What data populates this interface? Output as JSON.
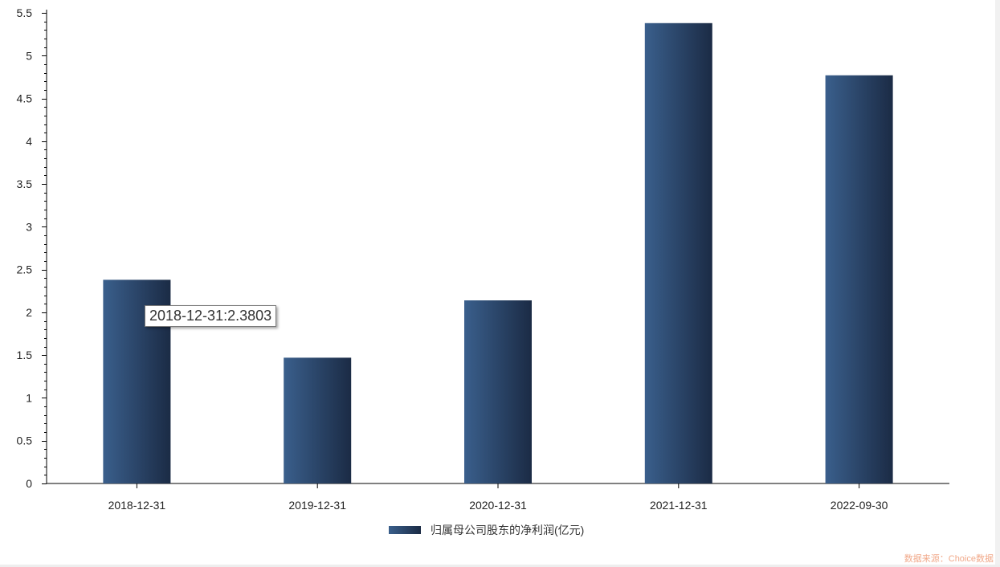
{
  "chart_data": {
    "type": "bar",
    "categories": [
      "2018-12-31",
      "2019-12-31",
      "2020-12-31",
      "2021-12-31",
      "2022-09-30"
    ],
    "series": [
      {
        "name": "归属母公司股东的净利润(亿元)",
        "values": [
          2.3803,
          1.47,
          2.14,
          5.38,
          4.77
        ]
      }
    ],
    "yticks": [
      "0",
      "0.5",
      "1",
      "1.5",
      "2",
      "2.5",
      "3",
      "3.5",
      "4",
      "4.5",
      "5",
      "5.5"
    ],
    "ylim": [
      0,
      5.5
    ],
    "grid": false,
    "legend_position": "bottom-center",
    "colors": {
      "bar_light": "#3a5f8c",
      "bar_dark": "#1b2b45"
    }
  },
  "tooltip": {
    "text": "2018-12-31:2.3803"
  },
  "legend": {
    "label": "归属母公司股东的净利润(亿元)"
  },
  "source": {
    "text": "数据来源：Choice数据"
  }
}
